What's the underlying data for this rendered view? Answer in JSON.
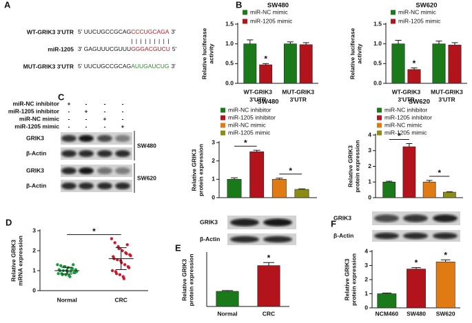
{
  "panel_labels": [
    "A",
    "B",
    "C",
    "D",
    "E",
    "F"
  ],
  "panel_a": {
    "rows": [
      {
        "label": "WT-GRIK3 3'UTR",
        "seq": [
          "5' UUCUGCCGCAG",
          "CCCUGCAGA",
          "3'"
        ],
        "color": "#c0141e"
      },
      {
        "label": "miR-1205",
        "seq": [
          "3' GAGUUUCGUUU",
          "GGGACGUCU",
          "5'"
        ],
        "color": "#c0141e"
      },
      {
        "label": "MUT-GRIK3 3'UTR",
        "seq": [
          "5' UUCUGCCGCAG",
          "AUUGAUCUG",
          "3'"
        ],
        "color": "#2a8a2a"
      }
    ],
    "pairing": "|||||||||"
  },
  "panel_c": {
    "conditions": [
      {
        "label": "miR-NC inhibitor",
        "marks": [
          "+",
          "-",
          "-",
          "-"
        ]
      },
      {
        "label": "miR-1205 inhibitor",
        "marks": [
          "-",
          "+",
          "-",
          "-"
        ]
      },
      {
        "label": "miR-NC mimic",
        "marks": [
          "-",
          "-",
          "+",
          "-"
        ]
      },
      {
        "label": "miR-1205 mimic",
        "marks": [
          "-",
          "-",
          "-",
          "+"
        ]
      }
    ],
    "blot_rows": [
      "GRIK3",
      "β-Actin",
      "GRIK3",
      "β-Actin"
    ],
    "cell_lines": [
      "SW480",
      "SW620"
    ]
  },
  "panel_e": {
    "blot_rows": [
      "GRIK3",
      "β-Actin"
    ]
  },
  "panel_f": {
    "blot_rows": [
      "GRIK3",
      "β-Actin"
    ]
  },
  "chart_data": [
    {
      "type": "bar",
      "title": "SW480",
      "ylabel": [
        "Relative luciferase",
        "activity"
      ],
      "categories": [
        [
          "WT-GRIK3",
          "3'UTR"
        ],
        [
          "MUT-GRIK3",
          "3'UTR"
        ]
      ],
      "series": [
        {
          "name": "miR-NC mimic",
          "color": "#1a7a1a",
          "values": [
            1.0,
            1.0
          ],
          "errors": [
            0.1,
            0.05
          ]
        },
        {
          "name": "miR-1205 mimic",
          "color": "#b3131b",
          "values": [
            0.47,
            0.98
          ],
          "errors": [
            0.03,
            0.05
          ]
        }
      ],
      "ylim": [
        0,
        1.5
      ],
      "yticks": [
        {
          "value": 0,
          "label": "0.0"
        },
        0.5,
        {
          "value": 1,
          "label": "1.0"
        },
        1.5
      ],
      "annotations": [
        "*"
      ]
    },
    {
      "type": "bar",
      "title": "SW620",
      "ylabel": [
        "Relative luciferase",
        "activity"
      ],
      "categories": [
        [
          "WT-GRIK3",
          "3'UTR"
        ],
        [
          "MUT-GRIK3",
          "3'UTR"
        ]
      ],
      "series": [
        {
          "name": "miR-NC mimic",
          "color": "#1a7a1a",
          "values": [
            1.0,
            1.0
          ],
          "errors": [
            0.09,
            0.07
          ]
        },
        {
          "name": "miR-1205 mimic",
          "color": "#b3131b",
          "values": [
            0.35,
            0.97
          ],
          "errors": [
            0.04,
            0.06
          ]
        }
      ],
      "ylim": [
        0,
        1.5
      ],
      "yticks": [
        {
          "value": 0,
          "label": "0.0"
        },
        0.5,
        {
          "value": 1,
          "label": "1.0"
        },
        1.5
      ],
      "annotations": [
        "*"
      ]
    },
    {
      "type": "bar",
      "title": "SW480",
      "ylabel": [
        "Relative GRIK3",
        "protein expression"
      ],
      "categories": [
        null
      ],
      "series": [
        {
          "name": "miR-NC inhibitor",
          "color": "#1a7a1a",
          "values": [
            1.0
          ],
          "errors": [
            0.08
          ]
        },
        {
          "name": "miR-1205 inhibitor",
          "color": "#b3131b",
          "values": [
            2.5
          ],
          "errors": [
            0.08
          ]
        },
        {
          "name": "miR-NC mimic",
          "color": "#e07b14",
          "values": [
            1.0
          ],
          "errors": [
            0.06
          ]
        },
        {
          "name": "miR-1205 mimic",
          "color": "#8c8c14",
          "values": [
            0.45
          ],
          "errors": [
            0.03
          ]
        }
      ],
      "ylim": [
        0,
        3
      ],
      "yticks": [
        0,
        1,
        2,
        3
      ],
      "annotations": [
        "*",
        "*"
      ]
    },
    {
      "type": "bar",
      "title": "SW620",
      "ylabel": [
        "Relative GRIK3",
        "protein expression"
      ],
      "categories": [
        null
      ],
      "series": [
        {
          "name": "miR-NC inhibitor",
          "color": "#1a7a1a",
          "values": [
            1.0
          ],
          "errors": [
            0.05
          ]
        },
        {
          "name": "miR-1205 inhibitor",
          "color": "#b3131b",
          "values": [
            3.25
          ],
          "errors": [
            0.2
          ]
        },
        {
          "name": "miR-NC mimic",
          "color": "#e07b14",
          "values": [
            1.0
          ],
          "errors": [
            0.1
          ]
        },
        {
          "name": "miR-1205 mimic",
          "color": "#8c8c14",
          "values": [
            0.35
          ],
          "errors": [
            0.03
          ]
        }
      ],
      "ylim": [
        0,
        4
      ],
      "yticks": [
        0,
        1,
        2,
        3,
        4
      ],
      "annotations": [
        "*",
        "*"
      ]
    },
    {
      "type": "dot",
      "ylabel": [
        "Relative GRIK3",
        "mRNA expression"
      ],
      "categories": [
        "Normal",
        "CRC"
      ],
      "groups": [
        {
          "color": "#1a9a3a",
          "values": [
            1.3,
            1.25,
            1.2,
            1.2,
            1.15,
            1.1,
            1.1,
            1.05,
            1.05,
            1.0,
            1.0,
            1.0,
            0.95,
            0.95,
            0.9,
            0.9,
            0.85,
            0.85,
            0.8,
            0.8,
            0.75,
            0.7,
            1.3,
            0.95
          ]
        },
        {
          "color": "#cc1a2a",
          "values": [
            2.6,
            2.4,
            2.2,
            2.1,
            2.0,
            1.9,
            1.85,
            1.8,
            1.7,
            1.6,
            1.55,
            1.5,
            1.4,
            1.3,
            1.2,
            1.15,
            1.0,
            0.95,
            0.85,
            0.8,
            0.7,
            0.6,
            2.3,
            1.75
          ]
        }
      ],
      "means": [
        1.0,
        1.6
      ],
      "sds": [
        0.17,
        0.55
      ],
      "ylim": [
        0,
        3
      ],
      "yticks": [
        0,
        1,
        2,
        3
      ],
      "annotations": [
        "*"
      ]
    },
    {
      "type": "bar",
      "ylabel": [
        "Relative GRIK3",
        "protein expression"
      ],
      "categories": [
        "Normal",
        "CRC"
      ],
      "series": [
        {
          "colors": [
            "#1a7a1a",
            "#b3131b"
          ],
          "values": [
            1.0,
            2.7
          ],
          "errors": [
            0.05,
            0.2
          ]
        }
      ],
      "ylim": [
        0,
        3.5
      ],
      "annotations": [
        "*"
      ]
    },
    {
      "type": "bar",
      "ylabel": [
        "Relative GRIK3",
        "protein expression"
      ],
      "categories": [
        "NCM460",
        "SW480",
        "SW620"
      ],
      "series": [
        {
          "colors": [
            "#1a7a1a",
            "#b3131b",
            "#e07b14"
          ],
          "values": [
            1.0,
            2.75,
            3.25
          ],
          "errors": [
            0.05,
            0.1,
            0.15
          ]
        }
      ],
      "ylim": [
        0,
        4
      ],
      "yticks": [
        0,
        1,
        2,
        3,
        4
      ],
      "annotations": [
        "*",
        "*"
      ]
    }
  ]
}
